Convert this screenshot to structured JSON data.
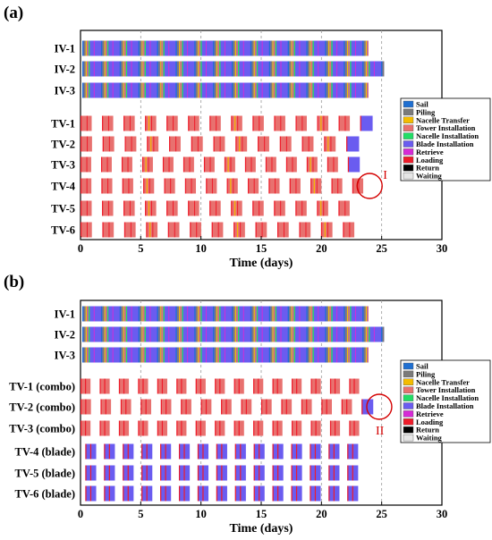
{
  "colors": {
    "Sail": "#1f6fd1",
    "Piling": "#7a7a7a",
    "Nacelle Transfer": "#f4bc00",
    "Tower Installation": "#e8716f",
    "Nacelle Installation": "#22dd66",
    "Blade Installation": "#6a5cf0",
    "Retrieve": "#d62ad6",
    "Loading": "#ee1c2a",
    "Return": "#000000",
    "Waiting": "#e6e6e6"
  },
  "chart_data": [
    {
      "type": "gantt",
      "panel_label": "(a)",
      "xlabel": "Time (days)",
      "xlim": [
        0,
        30
      ],
      "xticks": [
        0,
        5,
        10,
        15,
        20,
        25,
        30
      ],
      "legend_placement": "right",
      "legend": [
        "Sail",
        "Piling",
        "Nacelle Transfer",
        "Tower Installation",
        "Nacelle Installation",
        "Blade Installation",
        "Retrieve",
        "Loading",
        "Return",
        "Waiting"
      ],
      "annotation": {
        "text": "I",
        "vessel": "TV-4",
        "day": 24.0
      },
      "vessels": [
        {
          "name": "IV-1",
          "kind": "iv",
          "start": 0.15,
          "end": 23.9
        },
        {
          "name": "IV-2",
          "kind": "iv",
          "start": 0.15,
          "end": 25.2
        },
        {
          "name": "IV-3",
          "kind": "iv",
          "start": 0.15,
          "end": 23.9
        },
        {
          "name": "TV-1",
          "kind": "tv",
          "count": 14,
          "period": 1.74,
          "start": 0.0,
          "end": 25.0,
          "last_blade": true
        },
        {
          "name": "TV-2",
          "kind": "tv",
          "count": 13,
          "period": 1.74,
          "start": 0.0,
          "end": 23.9,
          "last_blade": true
        },
        {
          "name": "TV-3",
          "kind": "tv",
          "count": 14,
          "period": 1.74,
          "start": 0.0,
          "end": 23.9,
          "last_blade": true
        },
        {
          "name": "TV-4",
          "kind": "tv",
          "count": 14,
          "period": 1.74,
          "start": 0.0,
          "end": 24.3,
          "last_blade": false
        },
        {
          "name": "TV-5",
          "kind": "tv",
          "count": 13,
          "period": 1.74,
          "start": 0.0,
          "end": 23.2,
          "last_blade": false
        },
        {
          "name": "TV-6",
          "kind": "tv",
          "count": 13,
          "period": 1.74,
          "start": 0.0,
          "end": 23.6,
          "last_blade": false
        }
      ]
    },
    {
      "type": "gantt",
      "panel_label": "(b)",
      "xlabel": "Time (days)",
      "xlim": [
        0,
        30
      ],
      "xticks": [
        0,
        5,
        10,
        15,
        20,
        25,
        30
      ],
      "legend_placement": "right",
      "legend": [
        "Sail",
        "Piling",
        "Nacelle Transfer",
        "Tower Installation",
        "Nacelle Installation",
        "Blade Installation",
        "Retrieve",
        "Loading",
        "Return",
        "Waiting"
      ],
      "annotation": {
        "text": "II",
        "vessel": "TV-2 (combo)",
        "day": 24.8
      },
      "vessels": [
        {
          "name": "IV-1",
          "kind": "iv",
          "start": 0.15,
          "end": 23.9
        },
        {
          "name": "IV-2",
          "kind": "iv",
          "start": 0.15,
          "end": 25.2
        },
        {
          "name": "IV-3",
          "kind": "iv",
          "start": 0.15,
          "end": 23.9
        },
        {
          "name": "TV-1 (combo)",
          "kind": "combo",
          "count": 15,
          "period": 1.6,
          "start": 0.0,
          "end": 23.9
        },
        {
          "name": "TV-2 (combo)",
          "kind": "combo",
          "count": 15,
          "period": 1.6,
          "start": 0.0,
          "end": 25.0,
          "last_blade": true
        },
        {
          "name": "TV-3 (combo)",
          "kind": "combo",
          "count": 15,
          "period": 1.6,
          "start": 0.0,
          "end": 23.9
        },
        {
          "name": "TV-4 (blade)",
          "kind": "blade",
          "count": 15,
          "period": 1.6,
          "start": 0.4,
          "end": 23.7
        },
        {
          "name": "TV-5 (blade)",
          "kind": "blade",
          "count": 15,
          "period": 1.6,
          "start": 0.4,
          "end": 23.7
        },
        {
          "name": "TV-6 (blade)",
          "kind": "blade",
          "count": 15,
          "period": 1.6,
          "start": 0.4,
          "end": 23.7
        }
      ]
    }
  ]
}
